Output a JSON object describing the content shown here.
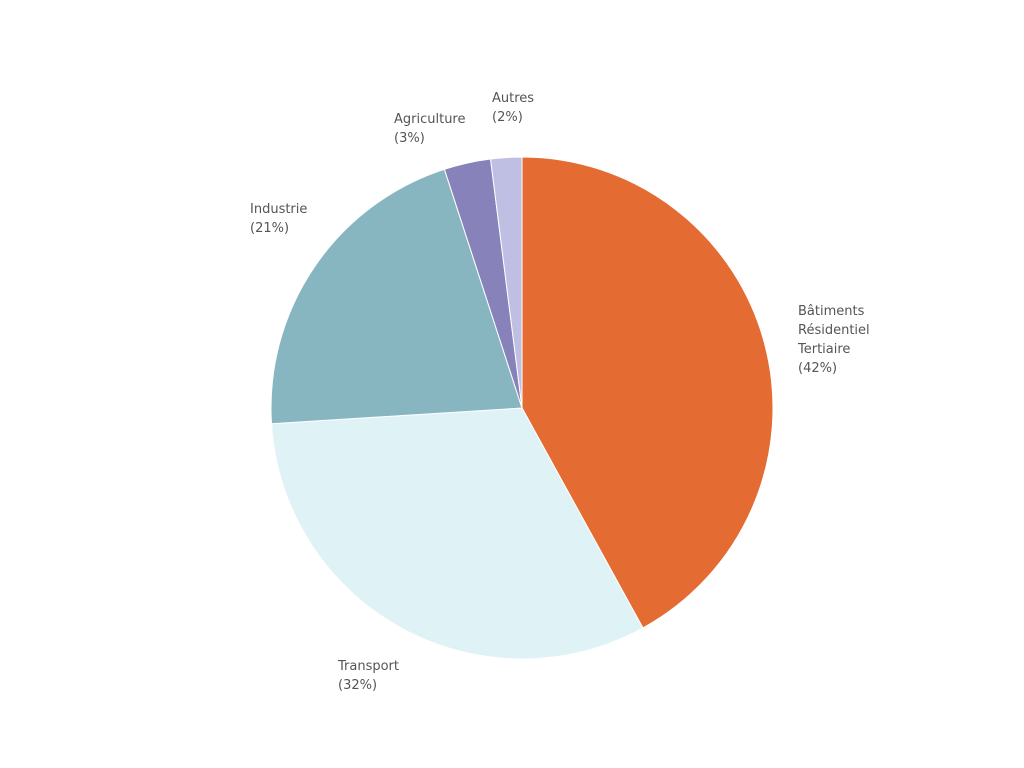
{
  "chart_data": {
    "type": "pie",
    "categories": [
      "Bâtiments\nRésidentiel\nTertiaire",
      "Transport",
      "Industrie",
      "Agriculture",
      "Autres"
    ],
    "values": [
      42,
      32,
      21,
      3,
      2
    ],
    "value_labels": [
      "(42%)",
      "(32%)",
      "(21%)",
      "(3%)",
      "(2%)"
    ],
    "colors": [
      "#e46c33",
      "#dff2f5",
      "#87b6c0",
      "#8782b9",
      "#bfbfe4"
    ]
  }
}
